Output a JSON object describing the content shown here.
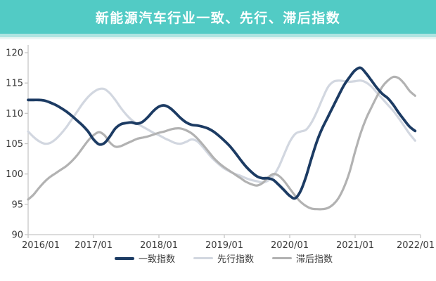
{
  "title": "新能源汽车行业一致、先行、滞后指数",
  "colors": {
    "banner": "#52cbc5",
    "banner_strip": "#aee4e1",
    "axis": "#c6c6c6",
    "tick_text": "#3a3a3a",
    "coincident": "#1c3b63",
    "leading": "#d2d7e0",
    "lagging": "#b2b2b2"
  },
  "chart_data": {
    "type": "line",
    "title": "新能源汽车行业一致、先行、滞后指数",
    "x_start": "2016/01",
    "x_step_months": 1,
    "x_tick_labels": [
      "2016/01",
      "2017/01",
      "2018/01",
      "2019/01",
      "2020/01",
      "2021/01",
      "2022/01"
    ],
    "y_ticks": [
      90,
      95,
      100,
      105,
      110,
      115,
      120
    ],
    "ylim": [
      90,
      120
    ],
    "grid": false,
    "legend_position": "bottom",
    "series": [
      {
        "name": "一致指数",
        "color": "#1c3b63",
        "width": 3.8,
        "values": [
          112.2,
          112.2,
          112.2,
          112.1,
          111.8,
          111.4,
          110.9,
          110.3,
          109.6,
          108.8,
          108.0,
          107.0,
          105.7,
          104.9,
          105.1,
          106.2,
          107.5,
          108.2,
          108.4,
          108.5,
          108.3,
          108.6,
          109.4,
          110.4,
          111.1,
          111.3,
          110.9,
          110.1,
          109.2,
          108.5,
          108.1,
          108.0,
          107.8,
          107.5,
          107.0,
          106.3,
          105.5,
          104.6,
          103.5,
          102.3,
          101.2,
          100.3,
          99.6,
          99.3,
          99.3,
          99.0,
          98.2,
          97.3,
          96.4,
          96.0,
          97.2,
          99.6,
          102.6,
          105.4,
          107.6,
          109.4,
          111.2,
          113.0,
          114.7,
          116.0,
          117.1,
          117.5,
          116.6,
          115.4,
          114.2,
          113.2,
          112.5,
          111.4,
          110.1,
          108.9,
          107.8,
          107.1
        ]
      },
      {
        "name": "先行指数",
        "color": "#d2d7e0",
        "width": 3.2,
        "values": [
          107.0,
          106.1,
          105.4,
          105.0,
          105.1,
          105.7,
          106.6,
          107.7,
          109.0,
          110.3,
          111.6,
          112.7,
          113.5,
          114.0,
          114.0,
          113.3,
          112.2,
          110.9,
          109.8,
          108.9,
          108.3,
          107.8,
          107.3,
          106.8,
          106.4,
          105.9,
          105.5,
          105.1,
          105.0,
          105.3,
          105.7,
          105.4,
          104.5,
          103.4,
          102.4,
          101.6,
          100.9,
          100.4,
          100.0,
          99.7,
          99.3,
          99.0,
          98.8,
          98.6,
          98.9,
          99.7,
          101.2,
          103.3,
          105.3,
          106.6,
          107.0,
          107.3,
          108.5,
          110.3,
          112.4,
          114.3,
          115.2,
          115.4,
          115.3,
          115.2,
          115.3,
          115.4,
          115.1,
          114.4,
          113.4,
          112.4,
          111.4,
          110.4,
          109.2,
          107.9,
          106.6,
          105.5
        ]
      },
      {
        "name": "滞后指数",
        "color": "#b2b2b2",
        "width": 3.2,
        "values": [
          95.8,
          96.6,
          97.7,
          98.7,
          99.5,
          100.1,
          100.7,
          101.3,
          102.1,
          103.1,
          104.3,
          105.5,
          106.4,
          106.9,
          106.4,
          105.2,
          104.5,
          104.6,
          105.0,
          105.4,
          105.8,
          106.0,
          106.2,
          106.5,
          106.8,
          107.0,
          107.3,
          107.5,
          107.5,
          107.2,
          106.7,
          105.9,
          104.9,
          103.8,
          102.7,
          101.8,
          101.1,
          100.5,
          99.9,
          99.3,
          98.7,
          98.3,
          98.1,
          98.5,
          99.4,
          100.0,
          99.7,
          98.8,
          97.6,
          96.4,
          95.4,
          94.7,
          94.3,
          94.2,
          94.2,
          94.4,
          95.0,
          96.1,
          97.9,
          100.4,
          103.7,
          106.7,
          109.1,
          111.0,
          112.8,
          114.4,
          115.4,
          116.0,
          115.8,
          114.9,
          113.7,
          112.9
        ]
      }
    ]
  },
  "legend": {
    "items": [
      "一致指数",
      "先行指数",
      "滞后指数"
    ]
  }
}
